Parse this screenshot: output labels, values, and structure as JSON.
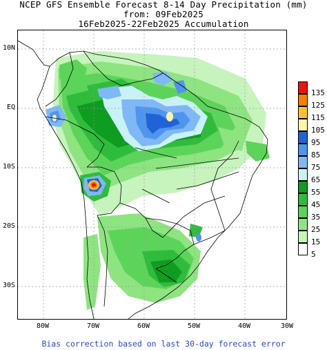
{
  "header": {
    "title": "NCEP GFS Ensemble Forecast 8-14 Day Precipitation (mm)",
    "from": "from: 09Feb2025",
    "period": "16Feb2025-22Feb2025 Accumulation"
  },
  "axes": {
    "lat_labels": [
      "10N",
      "EQ",
      "10S",
      "20S",
      "30S"
    ],
    "lon_labels": [
      "80W",
      "70W",
      "60W",
      "50W",
      "40W",
      "30W"
    ]
  },
  "legend": {
    "levels": [
      "135",
      "125",
      "115",
      "105",
      "95",
      "85",
      "75",
      "65",
      "55",
      "45",
      "35",
      "25",
      "15",
      "5"
    ],
    "colors": [
      "#e8140e",
      "#ff7e00",
      "#ffc12b",
      "#fff3a8",
      "#1f63d6",
      "#4f95ef",
      "#7fb8f7",
      "#c9f2f7",
      "#0e9c21",
      "#2fbc3c",
      "#5cd45a",
      "#8ee480",
      "#c7f3bd",
      "#ffffff"
    ]
  },
  "footer": {
    "note": "Bias correction based on last 30-day forecast error"
  }
}
